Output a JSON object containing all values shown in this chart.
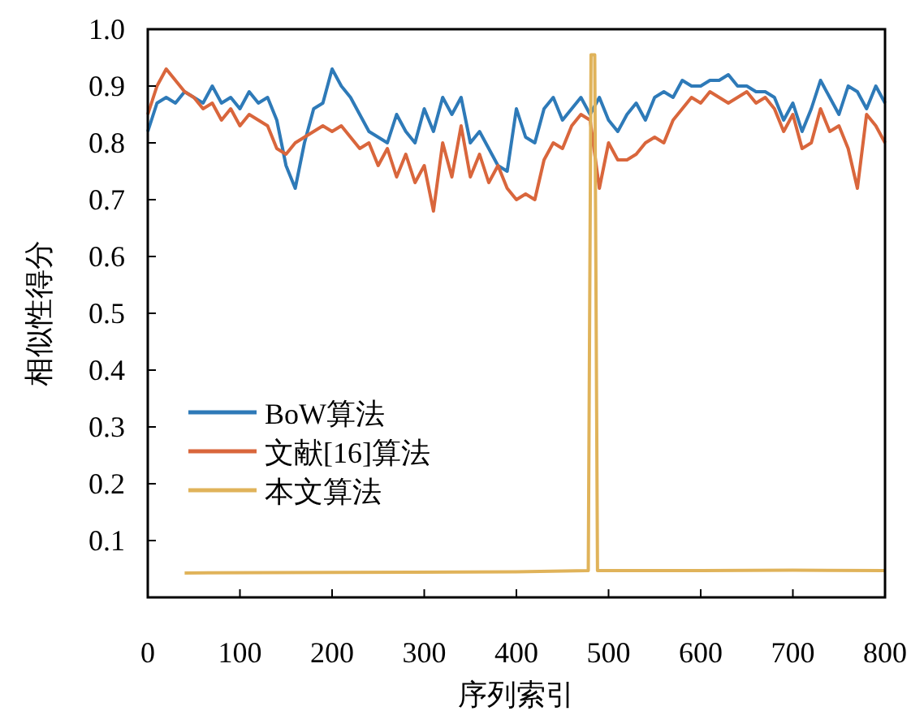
{
  "chart_data": {
    "type": "line",
    "xlabel": "序列索引",
    "ylabel": "相似性得分",
    "xlim": [
      0,
      800
    ],
    "xticks": [
      0,
      100,
      200,
      300,
      400,
      500,
      600,
      700,
      800
    ],
    "ylim": [
      0,
      1
    ],
    "yticks": [
      0.1,
      0.2,
      0.3,
      0.4,
      0.5,
      0.6,
      0.7,
      0.8,
      0.9,
      {
        "value": 1,
        "label": "1.0"
      }
    ],
    "grid": false,
    "legend": "bottom left",
    "x": [
      0,
      10,
      20,
      30,
      40,
      50,
      60,
      70,
      80,
      90,
      100,
      110,
      120,
      130,
      140,
      150,
      160,
      170,
      180,
      190,
      200,
      210,
      220,
      230,
      240,
      250,
      260,
      270,
      280,
      290,
      300,
      310,
      320,
      330,
      340,
      350,
      360,
      370,
      380,
      390,
      400,
      410,
      420,
      430,
      440,
      450,
      460,
      470,
      480,
      490,
      500,
      510,
      520,
      530,
      540,
      550,
      560,
      570,
      580,
      590,
      600,
      610,
      620,
      630,
      640,
      650,
      660,
      670,
      680,
      690,
      700,
      710,
      720,
      730,
      740,
      750,
      760,
      770,
      780,
      790,
      800
    ],
    "series": [
      {
        "name": "BoW算法",
        "color": "#2e7ab8",
        "values": [
          0.82,
          0.87,
          0.88,
          0.87,
          0.89,
          0.88,
          0.87,
          0.9,
          0.87,
          0.88,
          0.86,
          0.89,
          0.87,
          0.88,
          0.84,
          0.76,
          0.72,
          0.8,
          0.86,
          0.87,
          0.93,
          0.9,
          0.88,
          0.85,
          0.82,
          0.81,
          0.8,
          0.85,
          0.82,
          0.8,
          0.86,
          0.82,
          0.88,
          0.85,
          0.88,
          0.8,
          0.82,
          0.79,
          0.76,
          0.75,
          0.86,
          0.81,
          0.8,
          0.86,
          0.88,
          0.84,
          0.86,
          0.88,
          0.85,
          0.88,
          0.84,
          0.82,
          0.85,
          0.87,
          0.84,
          0.88,
          0.89,
          0.88,
          0.91,
          0.9,
          0.9,
          0.91,
          0.91,
          0.92,
          0.9,
          0.9,
          0.89,
          0.89,
          0.88,
          0.84,
          0.87,
          0.82,
          0.86,
          0.91,
          0.88,
          0.85,
          0.9,
          0.89,
          0.86,
          0.9,
          0.87
        ]
      },
      {
        "name": "文献[16]算法",
        "color": "#d9663c",
        "values": [
          0.85,
          0.9,
          0.93,
          0.91,
          0.89,
          0.88,
          0.86,
          0.87,
          0.84,
          0.86,
          0.83,
          0.85,
          0.84,
          0.83,
          0.79,
          0.78,
          0.8,
          0.81,
          0.82,
          0.83,
          0.82,
          0.83,
          0.81,
          0.79,
          0.8,
          0.76,
          0.79,
          0.74,
          0.78,
          0.73,
          0.76,
          0.68,
          0.8,
          0.74,
          0.83,
          0.74,
          0.78,
          0.73,
          0.76,
          0.72,
          0.7,
          0.71,
          0.7,
          0.77,
          0.8,
          0.79,
          0.83,
          0.85,
          0.84,
          0.72,
          0.8,
          0.77,
          0.77,
          0.78,
          0.8,
          0.81,
          0.8,
          0.84,
          0.86,
          0.88,
          0.87,
          0.89,
          0.88,
          0.87,
          0.88,
          0.89,
          0.87,
          0.88,
          0.86,
          0.82,
          0.85,
          0.79,
          0.8,
          0.86,
          0.82,
          0.83,
          0.79,
          0.72,
          0.85,
          0.83,
          0.8
        ]
      },
      {
        "name": "本文算法",
        "color": "#e0b35a",
        "x": [
          40,
          200,
          400,
          478,
          481,
          485,
          488,
          600,
          700,
          800
        ],
        "values": [
          0.043,
          0.044,
          0.045,
          0.047,
          0.955,
          0.955,
          0.047,
          0.047,
          0.048,
          0.047
        ]
      }
    ]
  }
}
